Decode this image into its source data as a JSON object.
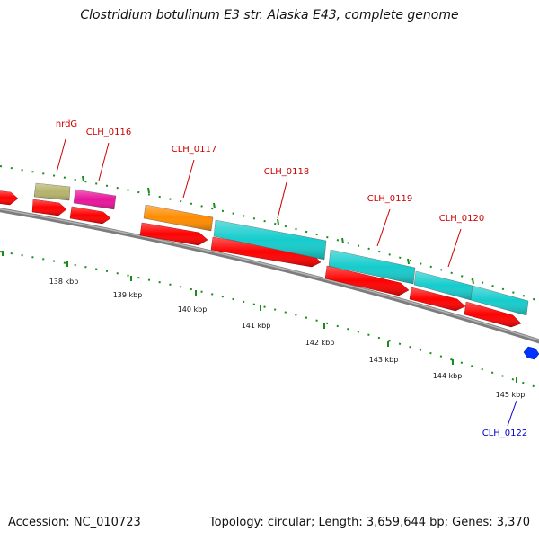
{
  "title": "Clostridium botulinum E3 str. Alaska E43, complete genome",
  "footer": {
    "accession": "Accession: NC_010723",
    "summary": "Topology: circular; Length: 3,659,644 bp; Genes: 3,370"
  },
  "genes": [
    {
      "label": "nrdG",
      "color": "#b5b36b"
    },
    {
      "label": "CLH_0116",
      "color": "#e8139a"
    },
    {
      "label": "CLH_0117",
      "color": "#ff8c00"
    },
    {
      "label": "CLH_0118",
      "color": "#15cccc"
    },
    {
      "label": "CLH_0119",
      "color": "#15cccc"
    },
    {
      "label": "CLH_0120",
      "color": "#15cccc"
    },
    {
      "label": "CLH_0122",
      "color": "#0033ff"
    }
  ],
  "scale_labels": [
    "138 kbp",
    "139 kbp",
    "140 kbp",
    "141 kbp",
    "142 kbp",
    "143 kbp",
    "144 kbp",
    "145 kbp"
  ],
  "colors": {
    "cds": "#ff0000",
    "ticks": "#1a8c1a",
    "backbone": "#888888",
    "label_red": "#cc0000",
    "label_blue": "#0000cc"
  }
}
